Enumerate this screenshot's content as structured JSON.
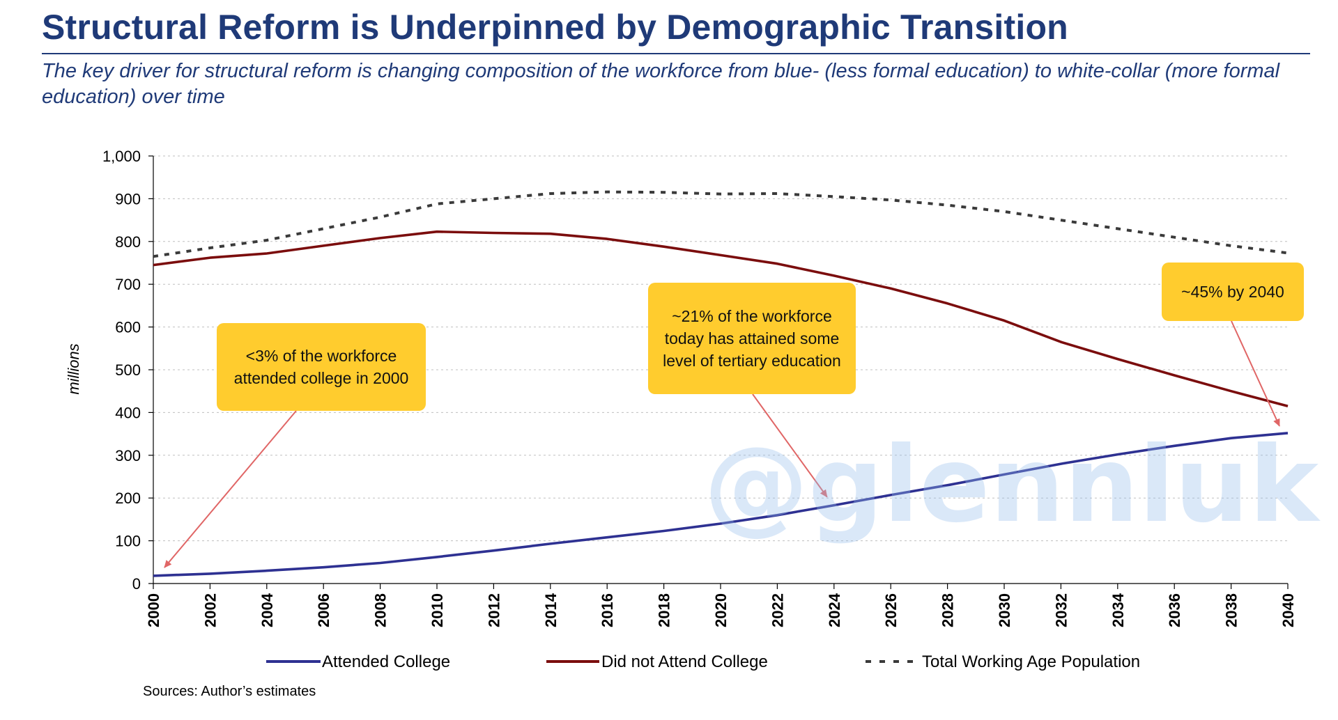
{
  "page": {
    "title": "Structural Reform is Underpinned by Demographic Transition",
    "subtitle": "The key driver for structural reform is changing composition of the workforce from blue- (less formal education) to white-collar (more formal education) over time",
    "source": "Sources: Author’s estimates",
    "watermark": "@glennluk"
  },
  "annotations": [
    {
      "text": "<3% of the workforce attended college in 2000",
      "points_to": {
        "series": "Attended College",
        "x": 2000
      }
    },
    {
      "text": "~21% of the workforce today has attained some level of tertiary education",
      "points_to": {
        "series": "Attended College",
        "x": 2024
      }
    },
    {
      "text": "~45% by 2040",
      "points_to": {
        "series": "Attended College",
        "x": 2040
      }
    }
  ],
  "colors": {
    "title": "#1f3a78",
    "attended": "#2e3192",
    "not_attended": "#7b0d0d",
    "total": "#3a3a3a",
    "callout": "#ffcc2e",
    "arrow": "#e06666",
    "grid": "#bfbfbf"
  },
  "chart_data": {
    "type": "line",
    "title": "",
    "xlabel": "",
    "ylabel": "millions",
    "xlim": [
      2000,
      2040
    ],
    "ylim": [
      0,
      1000
    ],
    "y_ticks": [
      0,
      100,
      200,
      300,
      400,
      500,
      600,
      700,
      800,
      900,
      1000
    ],
    "y_tick_labels": [
      "0",
      "100",
      "200",
      "300",
      "400",
      "500",
      "600",
      "700",
      "800",
      "900",
      "1,000"
    ],
    "x_ticks": [
      2000,
      2002,
      2004,
      2006,
      2008,
      2010,
      2012,
      2014,
      2016,
      2018,
      2020,
      2022,
      2024,
      2026,
      2028,
      2030,
      2032,
      2034,
      2036,
      2038,
      2040
    ],
    "grid": "horizontal dotted",
    "legend": "bottom",
    "series": [
      {
        "name": "Attended College",
        "style": "solid",
        "x": [
          2000,
          2002,
          2004,
          2006,
          2008,
          2010,
          2012,
          2014,
          2016,
          2018,
          2020,
          2022,
          2024,
          2026,
          2028,
          2030,
          2032,
          2034,
          2036,
          2038,
          2040
        ],
        "y": [
          18,
          23,
          30,
          38,
          48,
          62,
          77,
          93,
          108,
          123,
          140,
          160,
          183,
          207,
          230,
          255,
          280,
          302,
          322,
          340,
          352
        ]
      },
      {
        "name": "Did not Attend College",
        "style": "solid",
        "x": [
          2000,
          2002,
          2004,
          2006,
          2008,
          2010,
          2012,
          2014,
          2016,
          2018,
          2020,
          2022,
          2024,
          2026,
          2028,
          2030,
          2032,
          2034,
          2036,
          2038,
          2040
        ],
        "y": [
          745,
          762,
          772,
          790,
          808,
          823,
          820,
          818,
          806,
          788,
          768,
          748,
          720,
          690,
          655,
          615,
          565,
          525,
          487,
          450,
          415
        ]
      },
      {
        "name": "Total Working Age Population",
        "style": "dashed",
        "x": [
          2000,
          2002,
          2004,
          2006,
          2008,
          2010,
          2012,
          2014,
          2016,
          2018,
          2020,
          2022,
          2024,
          2026,
          2028,
          2030,
          2032,
          2034,
          2036,
          2038,
          2040
        ],
        "y": [
          765,
          785,
          803,
          830,
          857,
          888,
          900,
          912,
          916,
          915,
          911,
          912,
          905,
          897,
          885,
          870,
          850,
          830,
          810,
          790,
          773
        ]
      }
    ]
  }
}
